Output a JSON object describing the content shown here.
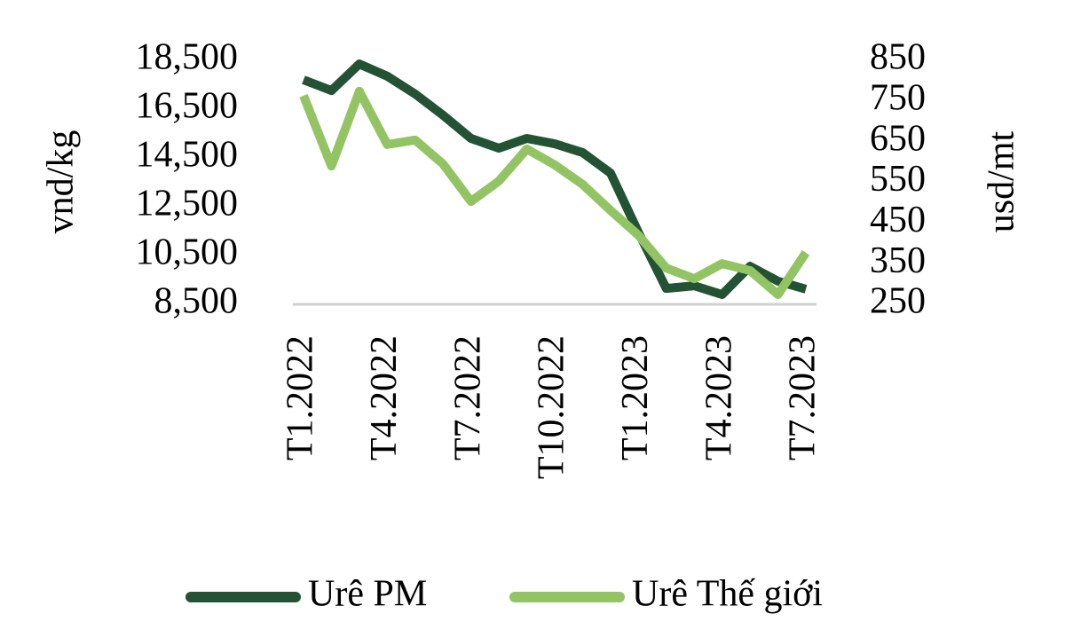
{
  "chart_data": {
    "type": "line",
    "categories": [
      "T1.2022",
      null,
      null,
      "T4.2022",
      null,
      null,
      "T7.2022",
      null,
      null,
      "T10.2022",
      null,
      null,
      "T1.2023",
      null,
      null,
      "T4.2023",
      null,
      null,
      "T7.2023"
    ],
    "y_label": "vnd/kg",
    "y2_label": "usd/mt",
    "ylim": [
      8500,
      18500
    ],
    "yticks": [
      {
        "value": 8500,
        "label": "8,500"
      },
      {
        "value": 10500,
        "label": "10,500"
      },
      {
        "value": 12500,
        "label": "12,500"
      },
      {
        "value": 14500,
        "label": "14,500"
      },
      {
        "value": 16500,
        "label": "16,500"
      },
      {
        "value": 18500,
        "label": "18,500"
      }
    ],
    "y2lim": [
      250,
      850
    ],
    "y2ticks": [
      250,
      350,
      450,
      550,
      650,
      750,
      850
    ],
    "grid": false,
    "legend": "bottom",
    "series": [
      {
        "name": "Urê PM",
        "color": "#245234",
        "values": [
          17700,
          17260,
          18350,
          17850,
          17120,
          16250,
          15300,
          14900,
          15300,
          15080,
          14720,
          13880,
          11450,
          9150,
          9260,
          8900,
          10060,
          9450,
          9120
        ]
      },
      {
        "name": "Urê Thế giới",
        "color": "#92c464",
        "axis": "y2",
        "values": [
          763,
          590,
          774,
          643,
          654,
          595,
          503,
          553,
          632,
          593,
          545,
          481,
          420,
          339,
          313,
          350,
          333,
          274,
          377
        ]
      }
    ]
  }
}
